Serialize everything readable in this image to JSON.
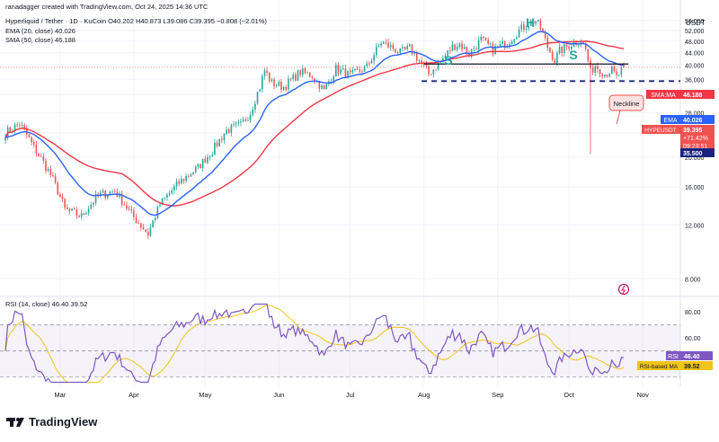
{
  "header": {
    "created_by": "ranadagger created with TradingView.com, Oct 24, 2025 14:36 UTC",
    "symbol_line": "Hyperliquid / Tether · 1D · KuCoin",
    "ohlc": "O40.202 H40.873 L39.086 C39.395 −0.808 (−2.01%)",
    "ema_line": "EMA (20, close) 40.026",
    "sma_line": "SMA (50, close) 46.188",
    "rsi_line": "RSI (14, close) 46.40 39.52",
    "currency": "USDT"
  },
  "branding": {
    "name": "TradingView"
  },
  "price_badges": {
    "sma_label": "SMA:MA",
    "sma_value": "46.188",
    "ema_label": "EMA",
    "ema_value": "40.026",
    "symbol_label": "HYPEUSDT",
    "price": "39.395",
    "change": "+71.42%",
    "countdown": "09:23:51",
    "support": "35.500"
  },
  "rsi_badges": {
    "rsi_label": "RSI",
    "rsi_value": "46.40",
    "ma_label": "RSI-based MA",
    "ma_value": "39.52"
  },
  "annotations": {
    "left_shoulder": "S",
    "head": "H",
    "right_shoulder": "S",
    "neckline": "Neckline"
  },
  "colors": {
    "up": "#26a69a",
    "down": "#ef5350",
    "ema": "#2962ff",
    "sma": "#f23645",
    "neckline": "#131722",
    "support": "#1a237e",
    "rsi": "#7e57c2",
    "rsi_ma": "#f0c419",
    "annotation": "#26a69a",
    "grid": "#f0f3fa"
  },
  "chart_data": [
    {
      "type": "candlestick",
      "title": "Hyperliquid / Tether · 1D · KuCoin",
      "x_tick_labels": [
        "Mar",
        "Apr",
        "May",
        "Jun",
        "Jul",
        "Aug",
        "Sep",
        "Oct",
        "Nov"
      ],
      "y_tick_labels": [
        "56.000",
        "52.000",
        "48.000",
        "44.000",
        "40.000",
        "36.000",
        "32.000",
        "28.000",
        "24.000",
        "20.000",
        "16.000",
        "12.000",
        "8.000"
      ],
      "yscale": "log",
      "ylim": [
        7,
        62
      ],
      "close_anchors": [
        [
          "2025-02-06",
          24.0
        ],
        [
          "2025-02-12",
          25.8
        ],
        [
          "2025-02-18",
          21.5
        ],
        [
          "2025-02-25",
          17.5
        ],
        [
          "2025-03-03",
          13.5
        ],
        [
          "2025-03-10",
          12.8
        ],
        [
          "2025-03-17",
          15.0
        ],
        [
          "2025-03-24",
          15.5
        ],
        [
          "2025-03-31",
          13.0
        ],
        [
          "2025-04-07",
          11.2
        ],
        [
          "2025-04-12",
          14.0
        ],
        [
          "2025-04-20",
          16.5
        ],
        [
          "2025-04-28",
          18.5
        ],
        [
          "2025-05-04",
          21.0
        ],
        [
          "2025-05-10",
          24.5
        ],
        [
          "2025-05-16",
          25.5
        ],
        [
          "2025-05-20",
          28.0
        ],
        [
          "2025-05-24",
          34.0
        ],
        [
          "2025-05-26",
          38.5
        ],
        [
          "2025-05-29",
          35.0
        ],
        [
          "2025-06-03",
          34.0
        ],
        [
          "2025-06-10",
          38.0
        ],
        [
          "2025-06-15",
          37.0
        ],
        [
          "2025-06-20",
          33.0
        ],
        [
          "2025-06-25",
          39.0
        ],
        [
          "2025-07-01",
          37.0
        ],
        [
          "2025-07-08",
          39.5
        ],
        [
          "2025-07-14",
          47.5
        ],
        [
          "2025-07-18",
          46.0
        ],
        [
          "2025-07-22",
          44.0
        ],
        [
          "2025-07-26",
          45.5
        ],
        [
          "2025-07-31",
          40.5
        ],
        [
          "2025-08-03",
          37.5
        ],
        [
          "2025-08-08",
          41.0
        ],
        [
          "2025-08-13",
          46.0
        ],
        [
          "2025-08-16",
          47.0
        ],
        [
          "2025-08-20",
          43.5
        ],
        [
          "2025-08-25",
          48.5
        ],
        [
          "2025-08-30",
          45.0
        ],
        [
          "2025-09-05",
          47.5
        ],
        [
          "2025-09-10",
          52.0
        ],
        [
          "2025-09-14",
          55.0
        ],
        [
          "2025-09-17",
          56.0
        ],
        [
          "2025-09-19",
          53.0
        ],
        [
          "2025-09-22",
          46.0
        ],
        [
          "2025-09-25",
          41.5
        ],
        [
          "2025-09-27",
          44.5
        ],
        [
          "2025-10-02",
          47.0
        ],
        [
          "2025-10-06",
          48.5
        ],
        [
          "2025-10-08",
          45.0
        ],
        [
          "2025-10-10",
          38.0
        ],
        [
          "2025-10-12",
          40.0
        ],
        [
          "2025-10-16",
          37.5
        ],
        [
          "2025-10-19",
          38.5
        ],
        [
          "2025-10-21",
          36.5
        ],
        [
          "2025-10-24",
          39.395
        ]
      ],
      "lowest_wick": {
        "date": "2025-10-10",
        "low": 20.5
      },
      "neckline": {
        "level": 40.4,
        "from": "2025-08-01",
        "to": "2025-10-26"
      },
      "support_line": {
        "level": 35.5,
        "from": "2025-07-31",
        "to": "2025-10-26"
      },
      "series": [
        {
          "name": "EMA (20, close)",
          "last": 40.026
        },
        {
          "name": "SMA (50, close)",
          "last": 46.188
        }
      ]
    },
    {
      "type": "line",
      "title": "RSI (14, close)",
      "y_tick_labels": [
        "80.00",
        "60.00",
        "40.00"
      ],
      "ylim": [
        25,
        87
      ],
      "bands": [
        70,
        50,
        30
      ],
      "series": [
        {
          "name": "RSI",
          "last": 46.4
        },
        {
          "name": "RSI-based MA",
          "last": 39.52
        }
      ]
    }
  ]
}
